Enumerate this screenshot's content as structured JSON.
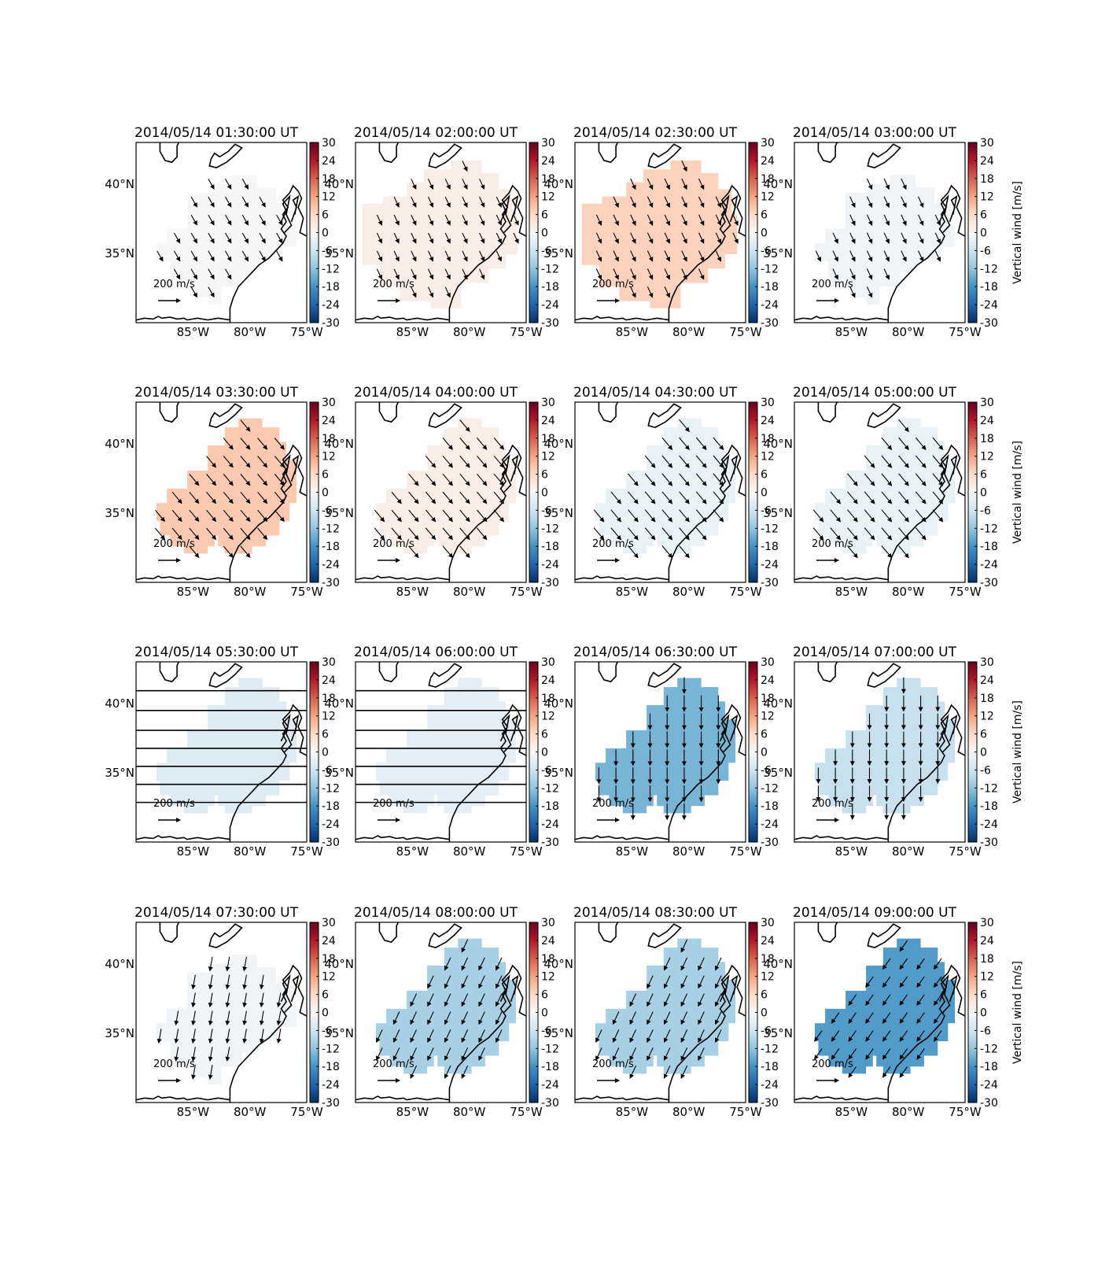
{
  "figure": {
    "row_titles": [
      [
        "2014/05/14 01:30:00 UT",
        "2014/05/14 02:00:00 UT",
        "2014/05/14 02:30:00 UT",
        "2014/05/14 03:00:00 UT"
      ],
      [
        "2014/05/14 03:30:00 UT",
        "2014/05/14 04:00:00 UT",
        "2014/05/14 04:30:00 UT",
        "2014/05/14 05:00:00 UT"
      ],
      [
        "2014/05/14 05:30:00 UT",
        "2014/05/14 06:00:00 UT",
        "2014/05/14 06:30:00 UT",
        "2014/05/14 07:00:00 UT"
      ],
      [
        "2014/05/14 07:30:00 UT",
        "2014/05/14 08:00:00 UT",
        "2014/05/14 08:30:00 UT",
        "2014/05/14 09:00:00 UT"
      ]
    ],
    "x_ticks": [
      "85°W",
      "80°W",
      "75°W"
    ],
    "y_ticks": [
      "40°N",
      "35°N"
    ],
    "colorbar_ticks": [
      "30",
      "24",
      "18",
      "12",
      "6",
      "0",
      "-6",
      "-12",
      "-18",
      "-24",
      "-30"
    ],
    "colorbar_label": "Vertical wind [m/s]",
    "reference_arrow_label": "200 m/s",
    "colormap": "RdBu_r",
    "land_outline_color": "#000000"
  },
  "chart_data": {
    "type": "heatmap",
    "xlim": [
      -90,
      -75
    ],
    "ylim": [
      30,
      43
    ],
    "x_ticks": [
      -85,
      -80,
      -75
    ],
    "y_ticks": [
      40,
      35
    ],
    "colorbar": {
      "range": [
        -30,
        30
      ],
      "ticks": [
        30,
        24,
        18,
        12,
        6,
        0,
        -6,
        -12,
        -18,
        -24,
        -30
      ],
      "label": "Vertical wind [m/s]",
      "cmap": "RdBu_r"
    },
    "reference_vector_m_per_s": 200,
    "panels": [
      {
        "time": "2014/05/14 01:30:00 UT",
        "vertical_wind": 0,
        "wind_dir_deg": 150,
        "wind_speed": 60,
        "region": "A",
        "horizontal_lines": false
      },
      {
        "time": "2014/05/14 02:00:00 UT",
        "vertical_wind": 2,
        "wind_dir_deg": 155,
        "wind_speed": 55,
        "region": "B",
        "horizontal_lines": false
      },
      {
        "time": "2014/05/14 02:30:00 UT",
        "vertical_wind": 7,
        "wind_dir_deg": 155,
        "wind_speed": 60,
        "region": "B",
        "horizontal_lines": false
      },
      {
        "time": "2014/05/14 03:00:00 UT",
        "vertical_wind": -1,
        "wind_dir_deg": 155,
        "wind_speed": 60,
        "region": "A",
        "horizontal_lines": false
      },
      {
        "time": "2014/05/14 03:30:00 UT",
        "vertical_wind": 8,
        "wind_dir_deg": 140,
        "wind_speed": 95,
        "region": "C",
        "horizontal_lines": false
      },
      {
        "time": "2014/05/14 04:00:00 UT",
        "vertical_wind": 2,
        "wind_dir_deg": 140,
        "wind_speed": 100,
        "region": "C",
        "horizontal_lines": false
      },
      {
        "time": "2014/05/14 04:30:00 UT",
        "vertical_wind": -2,
        "wind_dir_deg": 140,
        "wind_speed": 105,
        "region": "C",
        "horizontal_lines": false
      },
      {
        "time": "2014/05/14 05:00:00 UT",
        "vertical_wind": -2,
        "wind_dir_deg": 140,
        "wind_speed": 105,
        "region": "C",
        "horizontal_lines": false
      },
      {
        "time": "2014/05/14 05:30:00 UT",
        "vertical_wind": -4,
        "wind_dir_deg": null,
        "wind_speed": 0,
        "region": "C",
        "horizontal_lines": true
      },
      {
        "time": "2014/05/14 06:00:00 UT",
        "vertical_wind": -3,
        "wind_dir_deg": null,
        "wind_speed": 0,
        "region": "C",
        "horizontal_lines": true
      },
      {
        "time": "2014/05/14 06:30:00 UT",
        "vertical_wind": -14,
        "wind_dir_deg": 180,
        "wind_speed": 110,
        "region": "C",
        "horizontal_lines": false
      },
      {
        "time": "2014/05/14 07:00:00 UT",
        "vertical_wind": -7,
        "wind_dir_deg": 180,
        "wind_speed": 105,
        "region": "C",
        "horizontal_lines": false
      },
      {
        "time": "2014/05/14 07:30:00 UT",
        "vertical_wind": -1,
        "wind_dir_deg": 190,
        "wind_speed": 90,
        "region": "A",
        "horizontal_lines": false
      },
      {
        "time": "2014/05/14 08:00:00 UT",
        "vertical_wind": -10,
        "wind_dir_deg": 205,
        "wind_speed": 85,
        "region": "C",
        "horizontal_lines": false
      },
      {
        "time": "2014/05/14 08:30:00 UT",
        "vertical_wind": -10,
        "wind_dir_deg": 205,
        "wind_speed": 85,
        "region": "C",
        "horizontal_lines": false
      },
      {
        "time": "2014/05/14 09:00:00 UT",
        "vertical_wind": -17,
        "wind_dir_deg": 215,
        "wind_speed": 75,
        "region": "C",
        "horizontal_lines": false
      }
    ]
  }
}
